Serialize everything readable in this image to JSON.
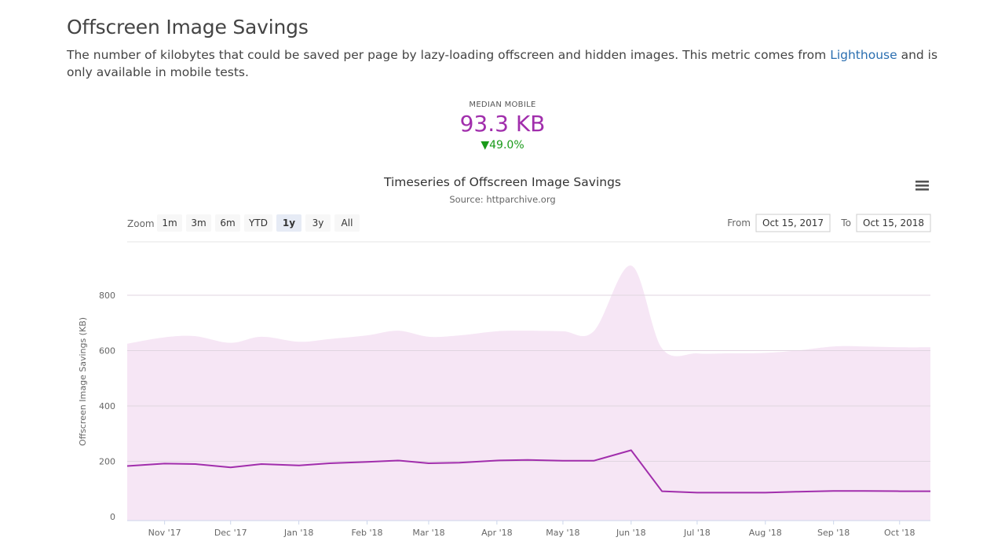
{
  "page": {
    "title": "Offscreen Image Savings",
    "description_before": "The number of kilobytes that could be saved per page by lazy-loading offscreen and hidden images. This metric comes from ",
    "description_link": "Lighthouse",
    "description_after": " and is only available in mobile tests."
  },
  "metric": {
    "label": "MEDIAN MOBILE",
    "value": "93.3 KB",
    "change": "49.0%",
    "change_direction": "down",
    "value_color": "#a12eac",
    "change_color": "#1a9a1a"
  },
  "toolbar": {
    "zoom_label": "Zoom",
    "zoom_options": [
      "1m",
      "3m",
      "6m",
      "YTD",
      "1y",
      "3y",
      "All"
    ],
    "zoom_selected": "1y",
    "from_label": "From",
    "from_value": "Oct 15, 2017",
    "to_label": "To",
    "to_value": "Oct 15, 2018",
    "menu_icon": "hamburger-menu-icon"
  },
  "colors": {
    "line": "#a12eac",
    "band_fill": "#f6e6f5",
    "grid": "#e6e6e6"
  },
  "chart_data": {
    "type": "line",
    "title": "Timeseries of Offscreen Image Savings",
    "subtitle": "Source: httparchive.org",
    "ylabel": "Offscreen Image Savings (KB)",
    "xlabel": "",
    "ylim": [
      0,
      1000
    ],
    "yticks": [
      0,
      200,
      400,
      600,
      800
    ],
    "xlim": [
      "2017-10-15",
      "2018-10-15"
    ],
    "xticks": [
      {
        "date": "2017-11-01",
        "label": "Nov '17"
      },
      {
        "date": "2017-12-01",
        "label": "Dec '17"
      },
      {
        "date": "2018-01-01",
        "label": "Jan '18"
      },
      {
        "date": "2018-02-01",
        "label": "Feb '18"
      },
      {
        "date": "2018-03-01",
        "label": "Mar '18"
      },
      {
        "date": "2018-04-01",
        "label": "Apr '18"
      },
      {
        "date": "2018-05-01",
        "label": "May '18"
      },
      {
        "date": "2018-06-01",
        "label": "Jun '18"
      },
      {
        "date": "2018-07-01",
        "label": "Jul '18"
      },
      {
        "date": "2018-08-01",
        "label": "Aug '18"
      },
      {
        "date": "2018-09-01",
        "label": "Sep '18"
      },
      {
        "date": "2018-10-01",
        "label": "Oct '18"
      }
    ],
    "grid": true,
    "median": {
      "dates": [
        "2017-10-15",
        "2017-11-01",
        "2017-11-15",
        "2017-12-01",
        "2017-12-15",
        "2018-01-01",
        "2018-01-15",
        "2018-02-01",
        "2018-02-15",
        "2018-03-01",
        "2018-03-15",
        "2018-04-01",
        "2018-04-15",
        "2018-05-01",
        "2018-05-15",
        "2018-06-01",
        "2018-06-15",
        "2018-07-01",
        "2018-07-15",
        "2018-08-01",
        "2018-08-15",
        "2018-09-01",
        "2018-09-15",
        "2018-10-01",
        "2018-10-15"
      ],
      "values": [
        183,
        192,
        190,
        178,
        190,
        185,
        193,
        198,
        203,
        193,
        195,
        203,
        205,
        202,
        202,
        240,
        92,
        87,
        87,
        87,
        90,
        93,
        93,
        92,
        92
      ]
    },
    "band_upper": {
      "dates": [
        "2017-10-15",
        "2017-11-01",
        "2017-11-15",
        "2017-12-01",
        "2017-12-15",
        "2018-01-01",
        "2018-01-15",
        "2018-02-01",
        "2018-02-15",
        "2018-03-01",
        "2018-03-15",
        "2018-04-01",
        "2018-04-15",
        "2018-05-01",
        "2018-05-15",
        "2018-06-01",
        "2018-06-15",
        "2018-07-01",
        "2018-07-15",
        "2018-08-01",
        "2018-08-15",
        "2018-09-01",
        "2018-09-15",
        "2018-10-01",
        "2018-10-15"
      ],
      "values": [
        625,
        648,
        652,
        628,
        650,
        632,
        642,
        655,
        672,
        650,
        655,
        670,
        672,
        670,
        670,
        907,
        608,
        590,
        590,
        592,
        600,
        615,
        615,
        612,
        612
      ]
    }
  }
}
